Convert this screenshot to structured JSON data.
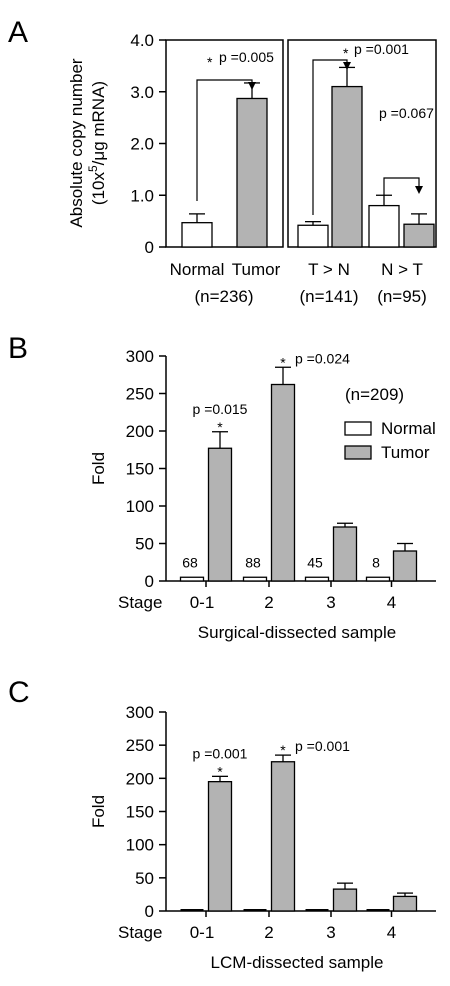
{
  "chart_data": [
    {
      "panel": "A",
      "type": "bar",
      "ylabel_line1": "Absolute copy number",
      "ylabel_line2_pre": "(10x",
      "ylabel_line2_sup": "5",
      "ylabel_line2_post": "/μg mRNA)",
      "ylim": [
        0,
        4.0
      ],
      "yticks": [
        "0",
        "1.0",
        "2.0",
        "3.0",
        "4.0"
      ],
      "groups": [
        {
          "categories": [
            "Normal",
            "Tumor"
          ],
          "values": [
            0.47,
            2.87
          ],
          "errors": [
            0.17,
            0.3
          ],
          "colors": [
            "white",
            "gray"
          ],
          "xlabel": "",
          "n_label": "(n=236)",
          "annotation": "p =0.005",
          "star": "*"
        },
        {
          "categories_label": "T > N",
          "values": [
            0.42,
            3.1
          ],
          "errors": [
            0.07,
            0.37
          ],
          "colors": [
            "white",
            "gray"
          ],
          "n_label": "(n=141)",
          "annotation": "p =0.001",
          "star": "*"
        },
        {
          "categories_label": "N > T",
          "values": [
            0.8,
            0.44
          ],
          "errors": [
            0.2,
            0.2
          ],
          "colors": [
            "white",
            "gray"
          ],
          "n_label": "(n=95)",
          "annotation": "p =0.067",
          "star": ""
        }
      ]
    },
    {
      "panel": "B",
      "type": "bar",
      "ylabel": "Fold",
      "xlabel": "Surgical-dissected sample",
      "stage_label": "Stage",
      "ylim": [
        0,
        300
      ],
      "yticks": [
        "0",
        "50",
        "100",
        "150",
        "200",
        "250",
        "300"
      ],
      "categories": [
        "0-1",
        "2",
        "3",
        "4"
      ],
      "n_labels": [
        "68",
        "88",
        "45",
        "8"
      ],
      "n_total": "(n=209)",
      "legend": [
        "Normal",
        "Tumor"
      ],
      "series": [
        {
          "name": "Normal",
          "values": [
            5,
            5,
            5,
            5
          ],
          "errors": [
            0,
            0,
            0,
            0
          ]
        },
        {
          "name": "Tumor",
          "values": [
            177,
            262,
            72,
            40
          ],
          "errors": [
            22,
            23,
            5,
            10
          ]
        }
      ],
      "annotations": [
        {
          "category": "0-1",
          "text": "p =0.015",
          "star": "*"
        },
        {
          "category": "2",
          "text": "p =0.024",
          "star": "*"
        }
      ]
    },
    {
      "panel": "C",
      "type": "bar",
      "ylabel": "Fold",
      "xlabel": "LCM-dissected sample",
      "stage_label": "Stage",
      "ylim": [
        0,
        300
      ],
      "yticks": [
        "0",
        "50",
        "100",
        "150",
        "200",
        "250",
        "300"
      ],
      "categories": [
        "0-1",
        "2",
        "3",
        "4"
      ],
      "series": [
        {
          "values": [
            3,
            3,
            3,
            3
          ],
          "errors": [
            0.5,
            0.5,
            0.5,
            0.5
          ]
        },
        {
          "values": [
            195,
            225,
            33,
            22
          ],
          "errors": [
            8,
            10,
            9,
            5
          ]
        }
      ],
      "annotations": [
        {
          "category": "0-1",
          "text": "p =0.001",
          "star": "*"
        },
        {
          "category": "2",
          "text": "p =0.001",
          "star": "*"
        }
      ]
    }
  ]
}
